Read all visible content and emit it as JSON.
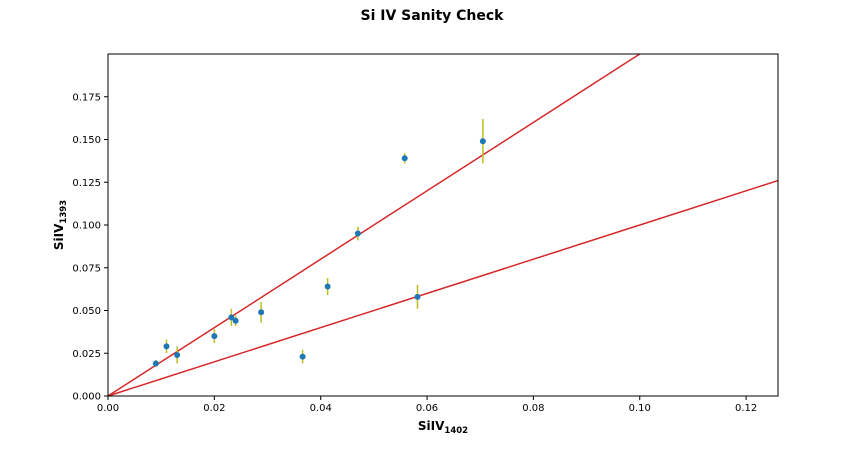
{
  "chart_data": {
    "type": "scatter",
    "title": "Si IV Sanity Check",
    "xlabel": {
      "main": "SiIV",
      "sub": "1402"
    },
    "ylabel": {
      "main": "SiIV",
      "sub": "1393"
    },
    "xlim": [
      0.0,
      0.126
    ],
    "ylim": [
      0.0,
      0.2
    ],
    "xticks": [
      "0.00",
      "0.02",
      "0.04",
      "0.06",
      "0.08",
      "0.10",
      "0.12"
    ],
    "yticks": [
      "0.000",
      "0.025",
      "0.050",
      "0.075",
      "0.100",
      "0.125",
      "0.150",
      "0.175"
    ],
    "grid": false,
    "point_color": "#1f77b4",
    "error_color": "#bcbd22",
    "line_color": "#d62728",
    "points": [
      {
        "x": 0.009,
        "y": 0.019,
        "yerr": 0.002
      },
      {
        "x": 0.011,
        "y": 0.029,
        "yerr": 0.004
      },
      {
        "x": 0.013,
        "y": 0.024,
        "yerr": 0.005
      },
      {
        "x": 0.02,
        "y": 0.035,
        "yerr": 0.004
      },
      {
        "x": 0.0232,
        "y": 0.046,
        "yerr": 0.005
      },
      {
        "x": 0.024,
        "y": 0.044,
        "yerr": 0.003
      },
      {
        "x": 0.0288,
        "y": 0.049,
        "yerr": 0.006
      },
      {
        "x": 0.0366,
        "y": 0.023,
        "yerr": 0.004
      },
      {
        "x": 0.0413,
        "y": 0.064,
        "yerr": 0.005
      },
      {
        "x": 0.047,
        "y": 0.095,
        "yerr": 0.004
      },
      {
        "x": 0.0558,
        "y": 0.139,
        "yerr": 0.003
      },
      {
        "x": 0.0582,
        "y": 0.058,
        "yerr": 0.007
      },
      {
        "x": 0.0705,
        "y": 0.149,
        "yerr": 0.013
      }
    ],
    "lines": [
      {
        "slope": 2.0
      },
      {
        "slope": 1.0
      }
    ]
  }
}
